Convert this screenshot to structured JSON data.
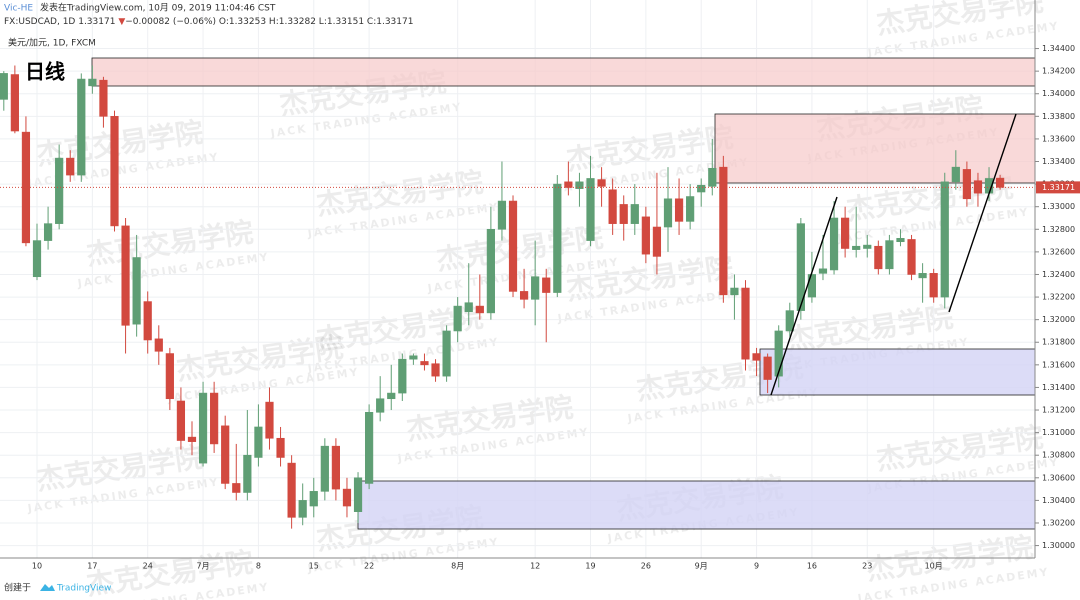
{
  "header": {
    "user": "Vic-HE",
    "published": "发表在TradingView.com, 10月 09, 2019 11:04:46 CST",
    "symbol_line": "FX:USDCAD, 1D 1.33171",
    "arrow": "▼",
    "change": "−0.00082 (−0.06%)",
    "ohlc": "O:1.33253 H:1.33282 L:1.33151 C:1.33171"
  },
  "watermark": {
    "title": "杰克交易学院",
    "subtitle": "JACK TRADING ACADEMY"
  },
  "footer": {
    "created": "创建于",
    "brand": "TradingView"
  },
  "chart_data": {
    "type": "candlestick",
    "legend_title": "美元/加元, 1D, FXCM",
    "annotation": "日线",
    "up_color": "#5f9e74",
    "down_color": "#d2493f",
    "grid": true,
    "categories": [
      null,
      null,
      null,
      "10",
      null,
      null,
      null,
      null,
      "17",
      null,
      null,
      null,
      null,
      "24",
      null,
      null,
      null,
      null,
      "7月",
      null,
      null,
      null,
      null,
      "8",
      null,
      null,
      null,
      null,
      "15",
      null,
      null,
      null,
      null,
      "22",
      null,
      null,
      null,
      null,
      null,
      null,
      null,
      "8月",
      null,
      null,
      null,
      null,
      null,
      null,
      "12",
      null,
      null,
      null,
      null,
      "19",
      null,
      null,
      null,
      null,
      "26",
      null,
      null,
      null,
      null,
      "9月",
      null,
      null,
      null,
      null,
      "9",
      null,
      null,
      null,
      null,
      "16",
      null,
      null,
      null,
      null,
      "23",
      null,
      null,
      null,
      null,
      null,
      "10月",
      null,
      null,
      null,
      null,
      null,
      null
    ],
    "open": [
      1.3395,
      1.3417,
      1.3366,
      1.3238,
      1.327,
      1.3285,
      1.3343,
      1.3328,
      1.3407,
      1.3412,
      1.338,
      1.3283,
      1.3196,
      1.3216,
      1.3183,
      1.317,
      1.3128,
      1.3096,
      1.3073,
      1.3135,
      1.3106,
      1.3055,
      1.3047,
      1.3078,
      1.3127,
      1.3095,
      1.3073,
      1.3025,
      1.3035,
      1.3048,
      1.3088,
      1.305,
      1.303,
      1.3055,
      1.3118,
      1.313,
      1.3135,
      1.3165,
      1.3163,
      1.3161,
      1.315,
      1.319,
      1.3207,
      1.3212,
      1.3206,
      1.328,
      1.3305,
      1.3225,
      1.3218,
      1.3237,
      1.3224,
      1.3322,
      1.3316,
      1.327,
      1.3324,
      1.3315,
      1.3302,
      1.3285,
      1.3291,
      1.3282,
      1.3282,
      1.3307,
      1.3287,
      1.3313,
      1.3318,
      1.3335,
      1.3222,
      1.3228,
      1.317,
      1.3167,
      1.315,
      1.319,
      1.3208,
      1.322,
      1.3241,
      1.3244,
      1.329,
      1.3262,
      1.3263,
      1.3265,
      1.3245,
      1.3269,
      1.3271,
      1.3237,
      1.3241,
      1.322,
      1.3322,
      1.3333,
      1.3323,
      1.3312,
      1.33253
    ],
    "high": [
      1.342,
      1.3425,
      1.338,
      1.3285,
      1.33,
      1.3355,
      1.335,
      1.3418,
      1.3425,
      1.3415,
      1.3385,
      1.329,
      1.3275,
      1.3225,
      1.3195,
      1.3175,
      1.314,
      1.311,
      1.3145,
      1.3145,
      1.3115,
      1.309,
      1.312,
      1.3125,
      1.314,
      1.3105,
      1.308,
      1.3055,
      1.306,
      1.3095,
      1.3095,
      1.306,
      1.3065,
      1.3125,
      1.315,
      1.316,
      1.317,
      1.317,
      1.317,
      1.3165,
      1.3195,
      1.322,
      1.325,
      1.324,
      1.33,
      1.334,
      1.331,
      1.3245,
      1.327,
      1.3245,
      1.3328,
      1.334,
      1.333,
      1.3345,
      1.3335,
      1.3325,
      1.331,
      1.332,
      1.33,
      1.333,
      1.3335,
      1.3325,
      1.332,
      1.3325,
      1.336,
      1.3345,
      1.324,
      1.3235,
      1.3175,
      1.317,
      1.3195,
      1.3215,
      1.329,
      1.326,
      1.3275,
      1.3305,
      1.33,
      1.33,
      1.3275,
      1.327,
      1.3275,
      1.328,
      1.3275,
      1.325,
      1.3245,
      1.333,
      1.335,
      1.334,
      1.333,
      1.3335,
      1.33282
    ],
    "low": [
      1.3385,
      1.3365,
      1.3265,
      1.3235,
      1.3262,
      1.328,
      1.3322,
      1.3322,
      1.34,
      1.337,
      1.3278,
      1.317,
      1.3185,
      1.317,
      1.316,
      1.312,
      1.3085,
      1.308,
      1.307,
      1.3082,
      1.305,
      1.304,
      1.304,
      1.307,
      1.3085,
      1.307,
      1.3015,
      1.3018,
      1.3025,
      1.304,
      1.304,
      1.3025,
      1.302,
      1.305,
      1.311,
      1.312,
      1.3128,
      1.316,
      1.3155,
      1.3145,
      1.3145,
      1.318,
      1.3195,
      1.32,
      1.32,
      1.327,
      1.322,
      1.321,
      1.3195,
      1.318,
      1.322,
      1.331,
      1.33,
      1.3265,
      1.33,
      1.3275,
      1.327,
      1.3275,
      1.325,
      1.324,
      1.326,
      1.3275,
      1.328,
      1.33,
      1.331,
      1.3215,
      1.32,
      1.3155,
      1.315,
      1.3135,
      1.314,
      1.3185,
      1.32,
      1.3215,
      1.3235,
      1.324,
      1.3255,
      1.3255,
      1.3255,
      1.324,
      1.324,
      1.3265,
      1.3235,
      1.3215,
      1.3215,
      1.321,
      1.3315,
      1.33,
      1.33,
      1.3305,
      1.33151
    ],
    "close": [
      1.3418,
      1.3367,
      1.3268,
      1.327,
      1.3285,
      1.3343,
      1.3328,
      1.3413,
      1.3413,
      1.338,
      1.3283,
      1.3195,
      1.3255,
      1.3182,
      1.3172,
      1.313,
      1.3093,
      1.3092,
      1.3135,
      1.309,
      1.3055,
      1.3047,
      1.308,
      1.3105,
      1.3095,
      1.3078,
      1.3025,
      1.304,
      1.3048,
      1.3088,
      1.305,
      1.3035,
      1.306,
      1.3118,
      1.313,
      1.3135,
      1.3165,
      1.3168,
      1.316,
      1.315,
      1.319,
      1.3212,
      1.3215,
      1.3206,
      1.328,
      1.3305,
      1.3225,
      1.3218,
      1.3238,
      1.3224,
      1.332,
      1.3317,
      1.3322,
      1.3325,
      1.3318,
      1.3285,
      1.3285,
      1.3302,
      1.3258,
      1.3256,
      1.3307,
      1.3287,
      1.3309,
      1.3319,
      1.3334,
      1.3222,
      1.3228,
      1.3165,
      1.3164,
      1.3147,
      1.319,
      1.3208,
      1.3285,
      1.324,
      1.3245,
      1.329,
      1.3263,
      1.3265,
      1.3266,
      1.3245,
      1.327,
      1.3272,
      1.324,
      1.3241,
      1.322,
      1.3322,
      1.3335,
      1.3307,
      1.3312,
      1.3325,
      1.33171
    ],
    "ylim": [
      1.2989,
      1.3452
    ],
    "yticks": [
      {
        "value": 1.3,
        "label": "1.30000"
      },
      {
        "value": 1.302,
        "label": "1.30200"
      },
      {
        "value": 1.304,
        "label": "1.30400"
      },
      {
        "value": 1.306,
        "label": "1.30600"
      },
      {
        "value": 1.308,
        "label": "1.30800"
      },
      {
        "value": 1.31,
        "label": "1.31000"
      },
      {
        "value": 1.312,
        "label": "1.31200"
      },
      {
        "value": 1.314,
        "label": "1.31400"
      },
      {
        "value": 1.316,
        "label": "1.31600"
      },
      {
        "value": 1.318,
        "label": "1.31800"
      },
      {
        "value": 1.32,
        "label": "1.32000"
      },
      {
        "value": 1.322,
        "label": "1.32200"
      },
      {
        "value": 1.324,
        "label": "1.32400"
      },
      {
        "value": 1.326,
        "label": "1.32600"
      },
      {
        "value": 1.328,
        "label": "1.32800"
      },
      {
        "value": 1.33,
        "label": "1.33000"
      },
      {
        "value": 1.332,
        "label": "1.33200"
      },
      {
        "value": 1.334,
        "label": "1.33400"
      },
      {
        "value": 1.336,
        "label": "1.33600"
      },
      {
        "value": 1.338,
        "label": "1.33800"
      },
      {
        "value": 1.34,
        "label": "1.34000"
      },
      {
        "value": 1.342,
        "label": "1.34200"
      },
      {
        "value": 1.344,
        "label": "1.34400"
      }
    ]
  }
}
